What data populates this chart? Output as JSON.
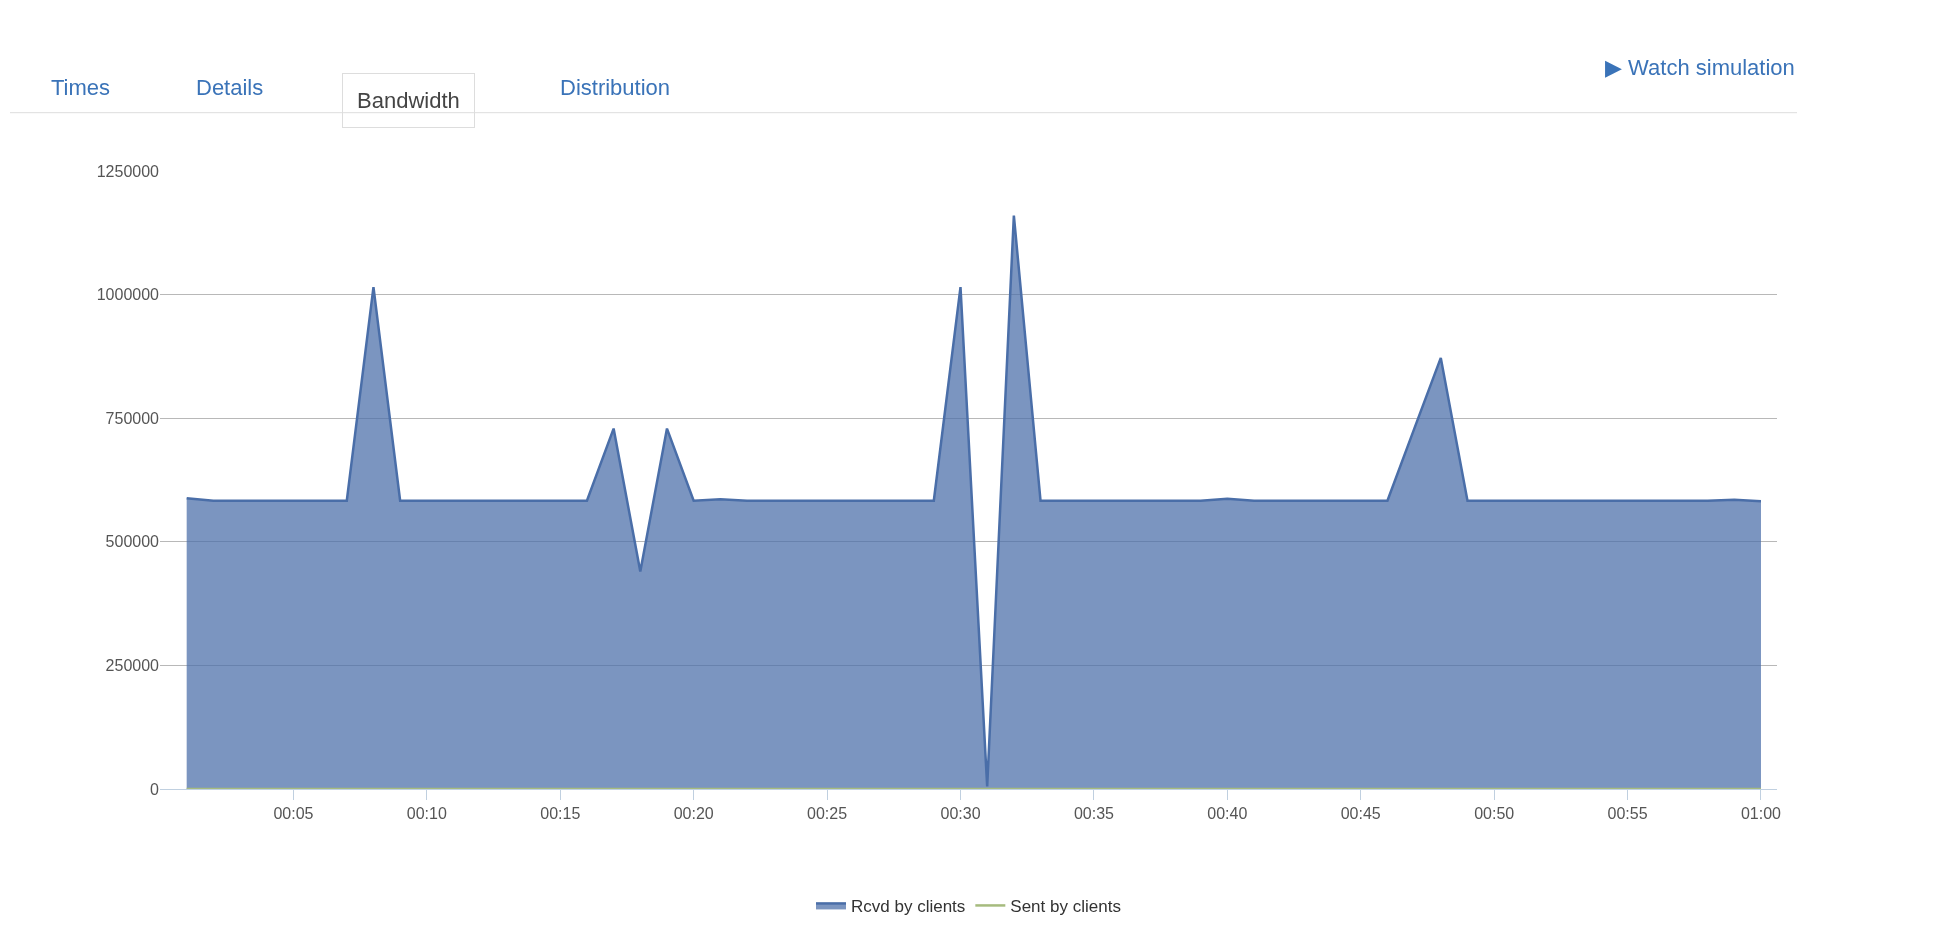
{
  "chart_data": {
    "type": "area",
    "x": [
      1,
      2,
      3,
      4,
      5,
      6,
      7,
      8,
      9,
      10,
      11,
      12,
      13,
      14,
      15,
      16,
      17,
      18,
      19,
      20,
      21,
      22,
      23,
      24,
      25,
      26,
      27,
      28,
      29,
      30,
      31,
      32,
      33,
      34,
      35,
      36,
      37,
      38,
      39,
      40,
      41,
      42,
      43,
      44,
      45,
      46,
      47,
      48,
      49,
      50,
      51,
      52,
      53,
      54,
      55,
      56,
      57,
      58,
      59,
      60
    ],
    "series": [
      {
        "name": "Rcvd by clients",
        "color": "#4a6ea8",
        "values": [
          588000,
          583000,
          583000,
          583000,
          583000,
          583000,
          583000,
          1015000,
          583000,
          583000,
          583000,
          583000,
          583000,
          583000,
          583000,
          583000,
          729000,
          440000,
          729000,
          583000,
          586000,
          583000,
          583000,
          583000,
          583000,
          583000,
          583000,
          583000,
          583000,
          1015000,
          5000,
          1160000,
          583000,
          583000,
          583000,
          583000,
          583000,
          583000,
          583000,
          587000,
          583000,
          583000,
          583000,
          583000,
          583000,
          583000,
          728000,
          872000,
          583000,
          583000,
          583000,
          583000,
          583000,
          583000,
          583000,
          583000,
          583000,
          583000,
          585000,
          582000
        ]
      },
      {
        "name": "Sent by clients",
        "type": "line",
        "color": "#a6bb7e",
        "values": [
          0,
          0,
          0,
          0,
          0,
          0,
          0,
          0,
          0,
          0,
          0,
          0,
          0,
          0,
          0,
          0,
          0,
          0,
          0,
          0,
          0,
          0,
          0,
          0,
          0,
          0,
          0,
          0,
          0,
          0,
          0,
          0,
          0,
          0,
          0,
          0,
          0,
          0,
          0,
          0,
          0,
          0,
          0,
          0,
          0,
          0,
          0,
          0,
          0,
          0,
          0,
          0,
          0,
          0,
          0,
          0,
          0,
          0,
          0,
          0
        ]
      }
    ],
    "xlim": [
      0,
      60.6
    ],
    "xticks": [
      {
        "value": 5,
        "label": "00:05"
      },
      {
        "value": 10,
        "label": "00:10"
      },
      {
        "value": 15,
        "label": "00:15"
      },
      {
        "value": 20,
        "label": "00:20"
      },
      {
        "value": 25,
        "label": "00:25"
      },
      {
        "value": 30,
        "label": "00:30"
      },
      {
        "value": 35,
        "label": "00:35"
      },
      {
        "value": 40,
        "label": "00:40"
      },
      {
        "value": 45,
        "label": "00:45"
      },
      {
        "value": 50,
        "label": "00:50"
      },
      {
        "value": 55,
        "label": "00:55"
      },
      {
        "value": 60,
        "label": "01:00"
      }
    ],
    "ylim": [
      0,
      1250000
    ],
    "yticks": [
      0,
      250000,
      500000,
      750000,
      1000000,
      1250000
    ],
    "grid": "y",
    "legend": "bottom",
    "annotations": [
      "Times",
      "Details",
      "Bandwidth",
      "Distribution",
      "▶ Watch simulation"
    ]
  }
}
